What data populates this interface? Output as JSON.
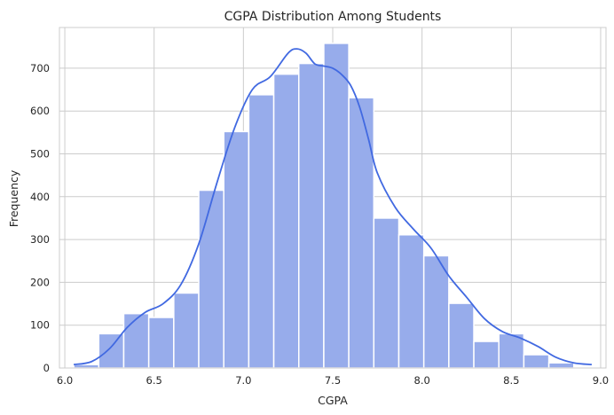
{
  "chart_data": {
    "type": "bar",
    "title": "CGPA Distribution Among Students",
    "xlabel": "CGPA",
    "ylabel": "Frequency",
    "bin_edges": [
      6.05,
      6.19,
      6.33,
      6.47,
      6.61,
      6.75,
      6.89,
      7.03,
      7.17,
      7.31,
      7.45,
      7.59,
      7.73,
      7.87,
      8.01,
      8.15,
      8.29,
      8.43,
      8.57,
      8.71,
      8.85
    ],
    "values": [
      8,
      80,
      127,
      118,
      175,
      415,
      552,
      638,
      686,
      711,
      758,
      631,
      350,
      311,
      262,
      151,
      62,
      80,
      31,
      12
    ],
    "kde": {
      "x": [
        6.05,
        6.15,
        6.25,
        6.35,
        6.45,
        6.55,
        6.65,
        6.75,
        6.85,
        6.95,
        7.05,
        7.15,
        7.25,
        7.3,
        7.35,
        7.4,
        7.45,
        7.5,
        7.55,
        7.6,
        7.65,
        7.7,
        7.75,
        7.85,
        7.95,
        8.05,
        8.15,
        8.25,
        8.35,
        8.45,
        8.55,
        8.65,
        8.75,
        8.85,
        8.95
      ],
      "y": [
        8,
        15,
        45,
        95,
        130,
        150,
        195,
        290,
        430,
        560,
        650,
        680,
        735,
        745,
        735,
        710,
        705,
        700,
        685,
        660,
        610,
        535,
        455,
        375,
        325,
        280,
        215,
        165,
        115,
        85,
        70,
        50,
        25,
        12,
        8
      ]
    },
    "xlim": [
      5.97,
      9.03
    ],
    "ylim": [
      0,
      795
    ],
    "xticks": [
      6.0,
      6.5,
      7.0,
      7.5,
      8.0,
      8.5,
      9.0
    ],
    "xtick_labels": [
      "6.0",
      "6.5",
      "7.0",
      "7.5",
      "8.0",
      "8.5",
      "9.0"
    ],
    "yticks": [
      0,
      100,
      200,
      300,
      400,
      500,
      600,
      700
    ],
    "ytick_labels": [
      "0",
      "100",
      "200",
      "300",
      "400",
      "500",
      "600",
      "700"
    ],
    "grid": true,
    "colors": {
      "bar_fill": "#97aceb",
      "bar_edge": "#ffffff",
      "kde_line": "#4169e1",
      "grid": "#cccccc",
      "frame": "#cccccc"
    }
  }
}
